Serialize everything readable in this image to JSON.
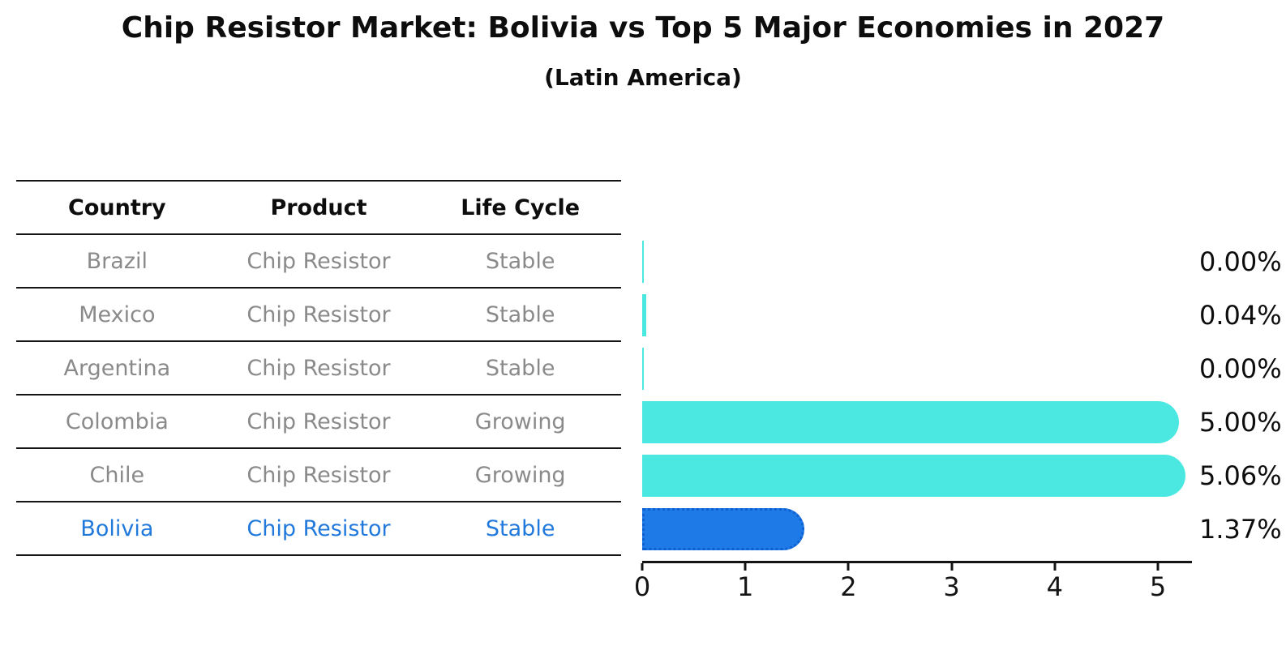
{
  "title": "Chip Resistor Market: Bolivia vs Top 5 Major Economies in 2027",
  "subtitle": "(Latin America)",
  "table": {
    "headers": [
      "Country",
      "Product",
      "Life Cycle"
    ],
    "rows": [
      {
        "country": "Brazil",
        "product": "Chip Resistor",
        "life_cycle": "Stable",
        "highlighted": false
      },
      {
        "country": "Mexico",
        "product": "Chip Resistor",
        "life_cycle": "Stable",
        "highlighted": false
      },
      {
        "country": "Argentina",
        "product": "Chip Resistor",
        "life_cycle": "Stable",
        "highlighted": false
      },
      {
        "country": "Colombia",
        "product": "Chip Resistor",
        "life_cycle": "Growing",
        "highlighted": false
      },
      {
        "country": "Chile",
        "product": "Chip Resistor",
        "life_cycle": "Growing",
        "highlighted": false
      },
      {
        "country": "Bolivia",
        "product": "Chip Resistor",
        "life_cycle": "Stable",
        "highlighted": true
      }
    ]
  },
  "chart_data": {
    "type": "bar",
    "orientation": "horizontal",
    "title": "Chip Resistor Market: Bolivia vs Top 5 Major Economies in 2027",
    "subtitle": "(Latin America)",
    "categories": [
      "Brazil",
      "Mexico",
      "Argentina",
      "Colombia",
      "Chile",
      "Bolivia"
    ],
    "values": [
      0.0,
      0.04,
      0.0,
      5.0,
      5.06,
      1.37
    ],
    "value_labels": [
      "0.00%",
      "0.04%",
      "0.00%",
      "5.00%",
      "5.06%",
      "1.37%"
    ],
    "x_ticks": [
      "0",
      "1",
      "2",
      "3",
      "4",
      "5"
    ],
    "xlim": [
      0,
      5.33
    ],
    "grid": false,
    "legend": null,
    "bar_color": "#4be8e1",
    "highlight_bar_color": "#1e7ae6",
    "highlight_border_color": "#0e5fd0",
    "highlight_index": 5
  },
  "colors": {
    "title_text": "#0d0d0d",
    "table_header_text": "#0d0d0d",
    "table_cell_text": "#8a8a8a",
    "highlight_text": "#2179dc",
    "table_line": "#141414",
    "axis": "#141414",
    "value_label_text": "#0d0d0d",
    "background": "#ffffff"
  }
}
